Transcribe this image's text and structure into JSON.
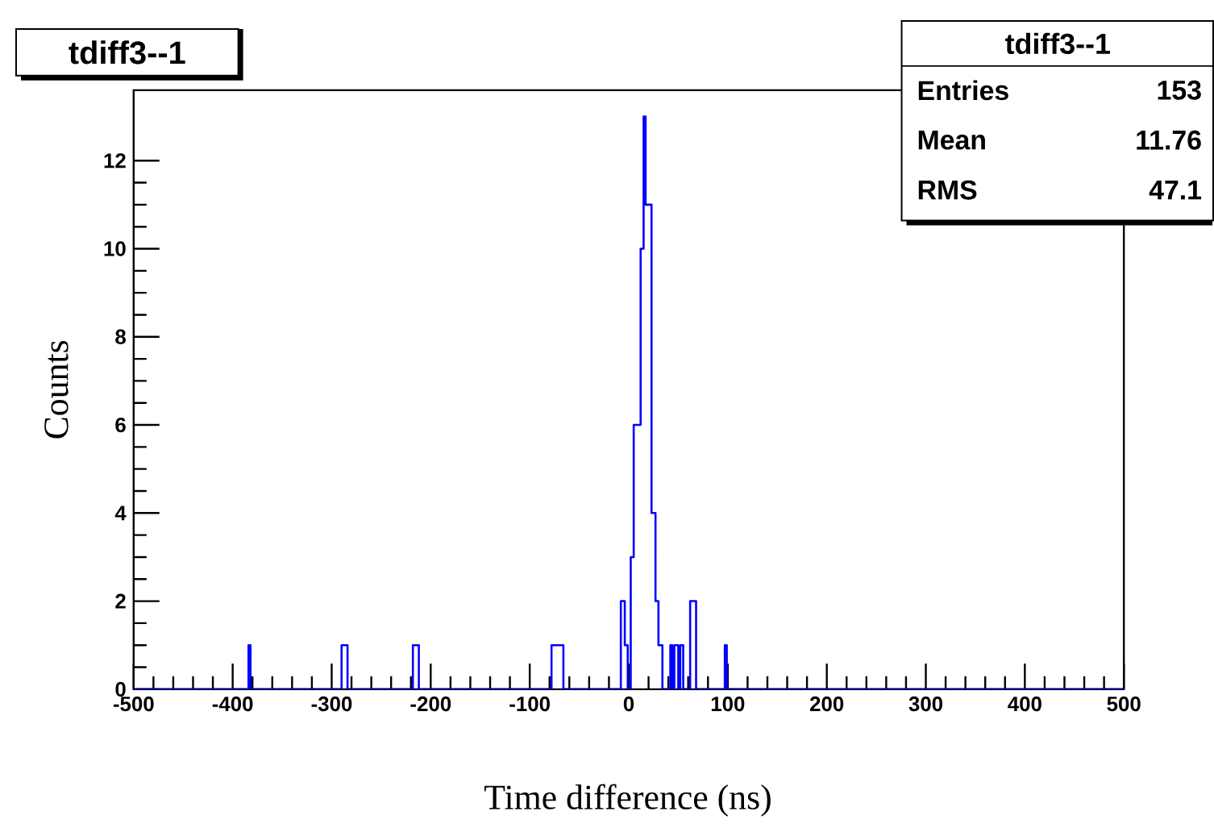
{
  "chart_data": {
    "type": "histogram",
    "title": "tdiff3--1",
    "xlabel": "Time difference (ns)",
    "ylabel": "Counts",
    "annotations": [
      "tdiff3--1",
      "Entries",
      "153",
      "Mean",
      "11.76",
      "RMS",
      "47.1"
    ],
    "bins": [
      -500,
      -384,
      -382,
      -290,
      -284,
      -218,
      -212,
      -78,
      -66,
      -8,
      -4,
      -1,
      2,
      5,
      12,
      15,
      17,
      23,
      27,
      30,
      34,
      42,
      44,
      46,
      50,
      52,
      55,
      62,
      68,
      97,
      99,
      500
    ],
    "values": [
      0,
      1,
      0,
      1,
      0,
      1,
      0,
      1,
      0,
      2,
      1,
      0,
      3,
      6,
      10,
      13,
      11,
      4,
      2,
      1,
      0,
      1,
      0,
      1,
      0,
      1,
      0,
      2,
      0,
      1,
      0
    ],
    "color": "#0000ff",
    "xlim": [
      -500,
      500
    ],
    "xticks": [
      -500,
      -400,
      -300,
      -200,
      -100,
      0,
      100,
      200,
      300,
      400,
      500
    ],
    "ylim": [
      0,
      13.6
    ],
    "yticks": [
      0,
      2,
      4,
      6,
      8,
      10,
      12
    ],
    "grid": false
  }
}
